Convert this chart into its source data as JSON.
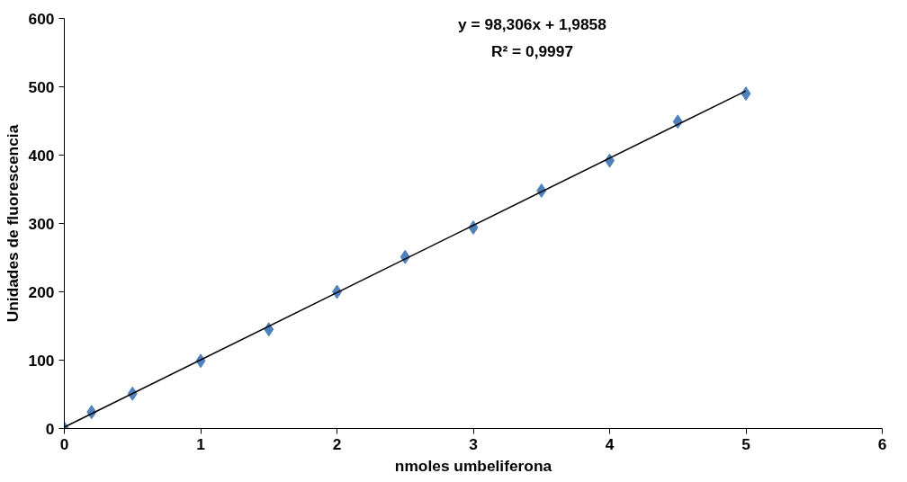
{
  "chart_data": {
    "type": "scatter",
    "xlabel": "nmoles umbeliferona",
    "ylabel": "Unidades de fluorescencia",
    "x": [
      0,
      0.2,
      0.5,
      1,
      1.5,
      2,
      2.5,
      3,
      3.5,
      4,
      4.5,
      5
    ],
    "series": [
      {
        "color": "#4f81bd",
        "marker": "diamond",
        "values": [
          0,
          24,
          51,
          99,
          145,
          200,
          251,
          294,
          348,
          392,
          449,
          490
        ]
      },
      {
        "type": "line",
        "color": "#000000",
        "x": [
          0,
          5
        ],
        "values": [
          2,
          494
        ]
      }
    ],
    "annotations": [
      "y = 98,306x + 1,9858",
      "R² = 0,9997"
    ],
    "xlim": [
      0,
      6
    ],
    "xticks": [
      0,
      1,
      2,
      3,
      4,
      5,
      6
    ],
    "ylim": [
      0,
      600
    ],
    "yticks": [
      0,
      100,
      200,
      300,
      400,
      500,
      600
    ],
    "grid": false
  }
}
